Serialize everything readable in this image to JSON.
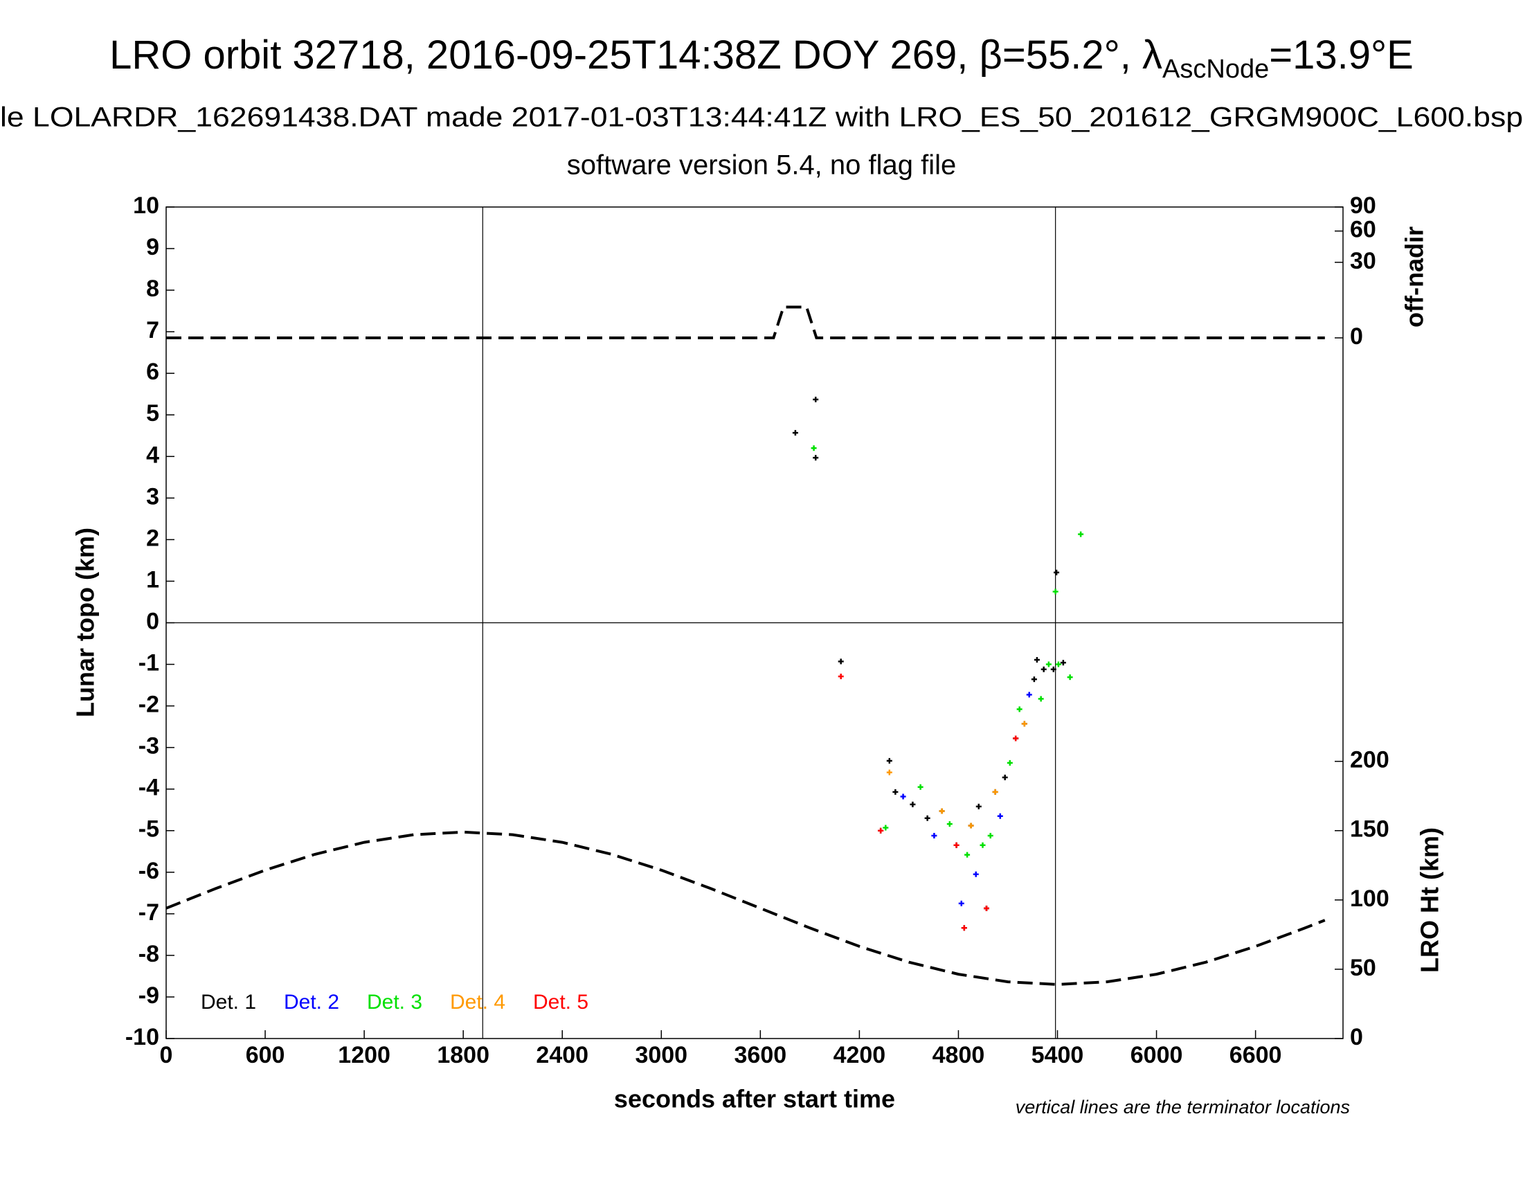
{
  "chart_data": {
    "type": "scatter",
    "title_parts": [
      "LRO orbit 32718, 2016-09-25T14:38Z DOY 269, β=55.2°, λ",
      "AscNode",
      "=13.9°E"
    ],
    "subtitle": "le LOLARDR_162691438.DAT made 2017-01-03T13:44:41Z with LRO_ES_50_201612_GRGM900C_L600.bsp",
    "subtitle2": "software version 5.4, no flag file",
    "x_label": "seconds after start time",
    "y_label": "Lunar topo (km)",
    "y2_label": "LRO Ht (km)",
    "y3_label": "off-nadir",
    "note": "vertical lines are the terminator locations",
    "xlim": [
      0,
      7130
    ],
    "xticks": [
      0,
      600,
      1200,
      1800,
      2400,
      3000,
      3600,
      4200,
      4800,
      5400,
      6000,
      6600
    ],
    "ylim": [
      -10,
      10
    ],
    "yticks": [
      -10,
      -9,
      -8,
      -7,
      -6,
      -5,
      -4,
      -3,
      -2,
      -1,
      0,
      1,
      2,
      3,
      4,
      5,
      6,
      7,
      8,
      9,
      10
    ],
    "y2lim": [
      0,
      600
    ],
    "y2ticks": [
      0,
      50,
      100,
      150,
      200
    ],
    "y3lim": [
      0,
      90
    ],
    "y3scale": "sqrt",
    "y3ticks": [
      0,
      30,
      60,
      90
    ],
    "terminators": [
      1918,
      5388
    ],
    "series": [
      {
        "name": "Det. 1",
        "color": "#000000",
        "x": [
          3812,
          3935,
          3935,
          4088,
          4329,
          4382,
          4418,
          4523,
          4612,
          4700,
          4788,
          4835,
          4876,
          4923,
          4970,
          5023,
          5082,
          5147,
          5200,
          5259,
          5276,
          5317,
          5376,
          5394,
          5435
        ],
        "values": [
          4.57,
          5.37,
          3.97,
          -0.93,
          -5.0,
          -3.32,
          -4.07,
          -4.37,
          -4.7,
          -4.53,
          -5.35,
          -7.34,
          -4.88,
          -4.42,
          -6.87,
          -4.07,
          -3.72,
          -2.78,
          -2.43,
          -1.36,
          -0.89,
          -1.12,
          -1.12,
          1.21,
          -0.96
        ]
      },
      {
        "name": "Det. 2",
        "color": "#0000ff",
        "x": [
          4465,
          4653,
          4818,
          4906,
          5053,
          5229
        ],
        "values": [
          -4.18,
          -5.12,
          -6.75,
          -6.05,
          -4.65,
          -1.73
        ]
      },
      {
        "name": "Det. 3",
        "color": "#00e000",
        "x": [
          3924,
          4359,
          4570,
          4747,
          4853,
          4947,
          4994,
          5112,
          5170,
          5300,
          5347,
          5388,
          5406,
          5476,
          5541
        ],
        "values": [
          4.2,
          -4.93,
          -3.95,
          -4.84,
          -5.58,
          -5.35,
          -5.12,
          -3.37,
          -2.08,
          -1.83,
          -1.0,
          0.75,
          -1.0,
          -1.31,
          2.13
        ]
      },
      {
        "name": "Det. 4",
        "color": "#ff9900",
        "x": [
          4382,
          4700,
          4876,
          5023,
          5200
        ],
        "values": [
          -3.6,
          -4.53,
          -4.88,
          -4.07,
          -2.43
        ]
      },
      {
        "name": "Det. 5",
        "color": "#ff0000",
        "x": [
          4088,
          4329,
          4788,
          4835,
          4970,
          5147
        ],
        "values": [
          -1.29,
          -5.0,
          -5.35,
          -7.34,
          -6.87,
          -2.78
        ]
      }
    ],
    "lines": [
      {
        "axis": "y2",
        "color": "#000000",
        "x": [
          0,
          300,
          600,
          900,
          1200,
          1500,
          1800,
          2100,
          2400,
          2700,
          3000,
          3300,
          3600,
          3900,
          4200,
          4500,
          4800,
          5100,
          5400,
          5700,
          6000,
          6300,
          6600,
          6900,
          7020
        ],
        "values": [
          94,
          108.2,
          121.5,
          132.9,
          141.6,
          147.1,
          149,
          147.1,
          141.6,
          132.9,
          121.5,
          108.2,
          94,
          79.8,
          66.5,
          55.1,
          46.4,
          40.9,
          39,
          40.9,
          46.4,
          55.1,
          66.5,
          79.8,
          85.4
        ]
      },
      {
        "axis": "y3",
        "color": "#000000",
        "x": [
          0,
          3680,
          3740,
          3880,
          3940,
          7020
        ],
        "values": [
          0,
          0,
          5,
          5,
          0,
          0
        ]
      }
    ]
  }
}
